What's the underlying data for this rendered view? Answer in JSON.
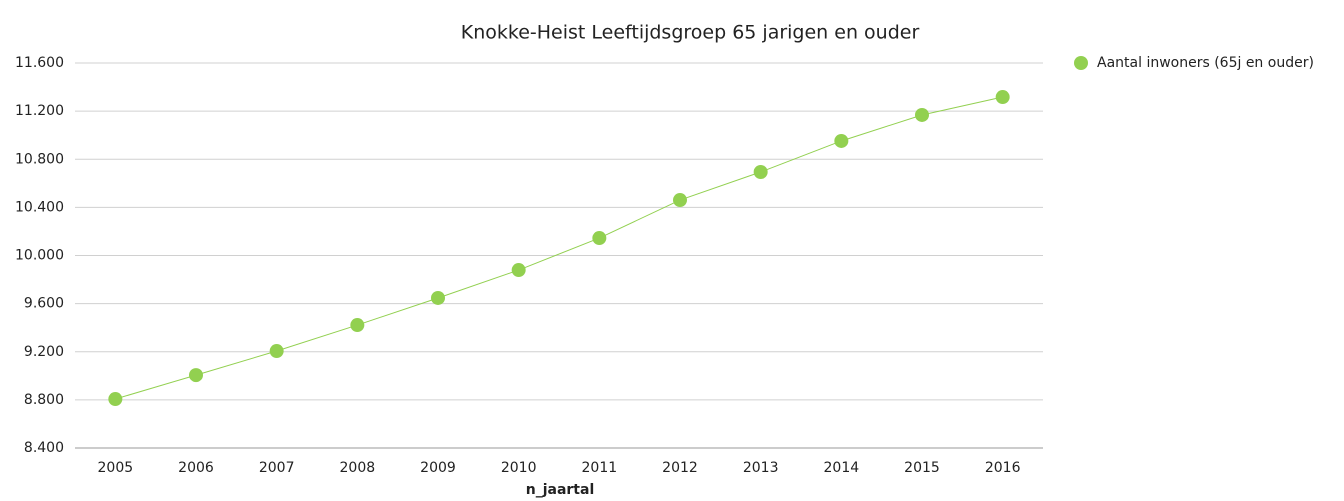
{
  "chart_data": {
    "type": "line",
    "title": "Knokke-Heist  Leeftijdsgroep 65 jarigen en ouder",
    "x_label": "n_jaartal",
    "categories": [
      "2005",
      "2006",
      "2007",
      "2008",
      "2009",
      "2010",
      "2011",
      "2012",
      "2013",
      "2014",
      "2015",
      "2016"
    ],
    "series": [
      {
        "name": "Aantal inwoners (65j en ouder)",
        "color": "#92d050",
        "values": [
          8807,
          9006,
          9206,
          9422,
          9647,
          9879,
          10145,
          10461,
          10694,
          10952,
          11168,
          11317
        ]
      }
    ],
    "ylim": [
      8400,
      11600
    ],
    "yticks": [
      {
        "value": 8400,
        "label": "8.400"
      },
      {
        "value": 8800,
        "label": "8.800"
      },
      {
        "value": 9200,
        "label": "9.200"
      },
      {
        "value": 9600,
        "label": "9.600"
      },
      {
        "value": 10000,
        "label": "10.000"
      },
      {
        "value": 10400,
        "label": "10.400"
      },
      {
        "value": 10800,
        "label": "10.800"
      },
      {
        "value": 11200,
        "label": "11.200"
      },
      {
        "value": 11600,
        "label": "11.600"
      }
    ],
    "grid": true,
    "legend": "right"
  }
}
